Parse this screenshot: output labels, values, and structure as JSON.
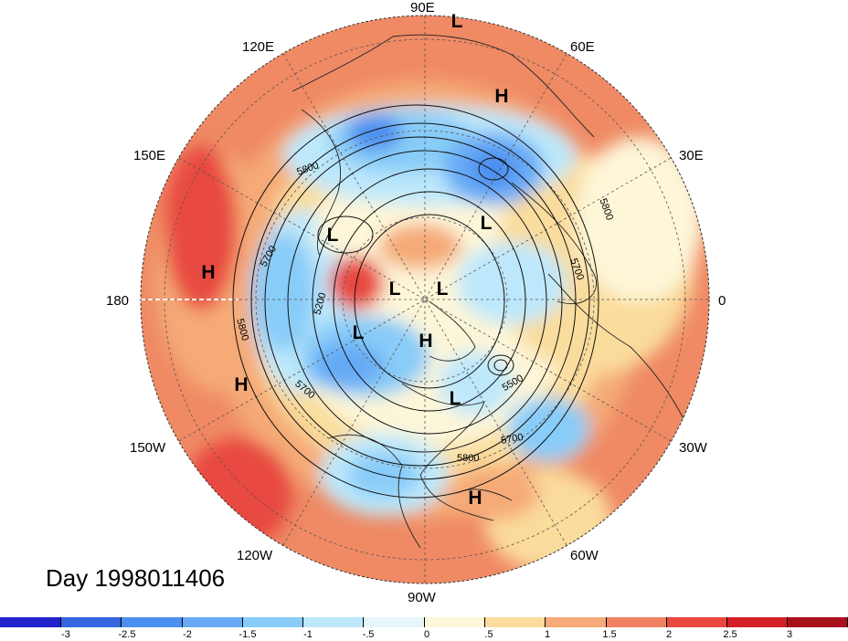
{
  "title": "Day 1998011406",
  "longitude_labels": [
    "90E",
    "60E",
    "30E",
    "0",
    "30W",
    "60W",
    "90W",
    "120W",
    "150W",
    "180",
    "150E",
    "120E"
  ],
  "contour_labels": [
    "5800",
    "5700",
    "5200",
    "5800",
    "5700",
    "5500",
    "5700",
    "5800",
    "5800",
    "5700"
  ],
  "pressure_centers": [
    "L",
    "H",
    "H",
    "L",
    "H",
    "L",
    "L",
    "L",
    "H",
    "L",
    "L",
    "H"
  ],
  "colorbar": {
    "colors": [
      "#2222cc",
      "#3366e0",
      "#4d8ff0",
      "#66aaf5",
      "#88ccf8",
      "#bde8fb",
      "#e6f6fb",
      "#fdf6d8",
      "#fadc9c",
      "#f5aa77",
      "#ef8060",
      "#e84840",
      "#d41f28",
      "#a8101c"
    ],
    "tick_labels": [
      "-3",
      "-2.5",
      "-2",
      "-1.5",
      "-1",
      "-.5",
      "0",
      ".5",
      "1",
      "1.5",
      "2",
      "2.5",
      "3"
    ]
  }
}
